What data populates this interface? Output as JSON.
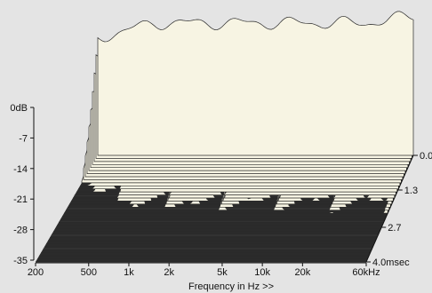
{
  "chart_data": {
    "type": "waterfall",
    "title": "",
    "xlabel": "Frequency in Hz >>",
    "x_ticks": [
      "200",
      "500",
      "1k",
      "2k",
      "5k",
      "10k",
      "20k",
      "60kHz"
    ],
    "x_tick_values": [
      200,
      500,
      1000,
      2000,
      5000,
      10000,
      20000,
      60000
    ],
    "x_range": [
      200,
      60000
    ],
    "x_scale": "log",
    "y_unit": "dB",
    "y_ticks": [
      "0dB",
      "-7",
      "-14",
      "-21",
      "-28",
      "-35"
    ],
    "y_tick_values": [
      0,
      -7,
      -14,
      -21,
      -28,
      -35
    ],
    "ylim": [
      -35,
      0
    ],
    "z_unit": "msec",
    "z_ticks": [
      "0.0",
      "1.3",
      "2.7",
      "4.0msec"
    ],
    "z_tick_values": [
      0.0,
      1.3,
      2.7,
      4.0
    ],
    "zlim": [
      0.0,
      4.0
    ],
    "grid": true,
    "colors": {
      "background": "#e4e4e4",
      "surface_fill": "#f7f4e3",
      "surface_line": "#2a2a2a",
      "floor": "#2b2b2b",
      "floor_stripe": "#3a3a3a"
    }
  }
}
